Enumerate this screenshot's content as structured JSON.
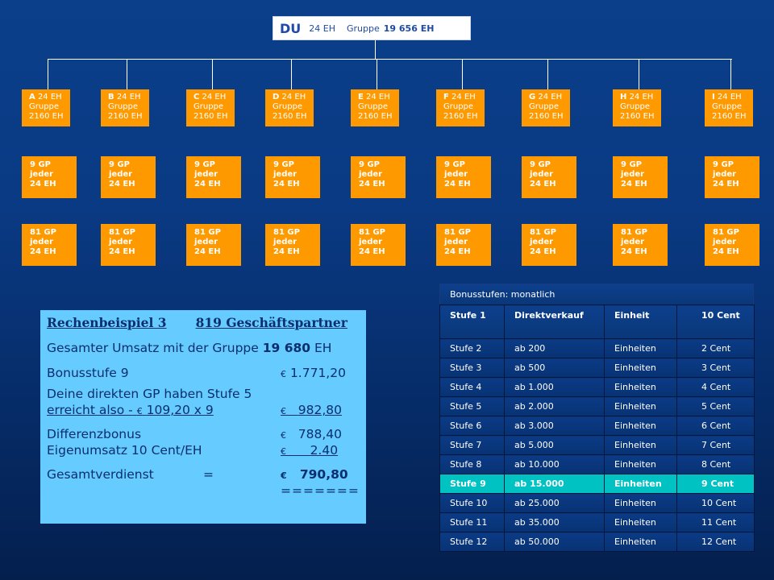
{
  "top": {
    "du": "DU",
    "eh": "24 EH",
    "gruppe_label": "Gruppe",
    "gruppe_value": "19 656 EH"
  },
  "branches": [
    {
      "letter": "A",
      "eh": "24 EH",
      "gruppe": "Gruppe",
      "gruppe_value": "2160 EH"
    },
    {
      "letter": "B",
      "eh": "24 EH",
      "gruppe": "Gruppe",
      "gruppe_value": "2160 EH"
    },
    {
      "letter": "C",
      "eh": "24 EH",
      "gruppe": "Gruppe",
      "gruppe_value": "2160 EH"
    },
    {
      "letter": "D",
      "eh": "24 EH",
      "gruppe": "Gruppe",
      "gruppe_value": "2160 EH"
    },
    {
      "letter": "E",
      "eh": "24 EH",
      "gruppe": "Gruppe",
      "gruppe_value": "2160 EH"
    },
    {
      "letter": "F",
      "eh": "24 EH",
      "gruppe": "Gruppe",
      "gruppe_value": "2160 EH"
    },
    {
      "letter": "G",
      "eh": "24 EH",
      "gruppe": "Gruppe",
      "gruppe_value": "2160 EH"
    },
    {
      "letter": "H",
      "eh": "24 EH",
      "gruppe": "Gruppe",
      "gruppe_value": "2160 EH"
    },
    {
      "letter": "I",
      "eh": "24 EH",
      "gruppe": "Gruppe",
      "gruppe_value": "2160 EH"
    }
  ],
  "level2": {
    "gp": "9 GP",
    "jeder": "jeder",
    "eh": "24 EH"
  },
  "level3": {
    "gp": "81 GP",
    "jeder": "jeder",
    "eh": "24 EH"
  },
  "calc": {
    "title_left": "Rechenbeispiel 3",
    "title_right": "819 Geschäftspartner",
    "umsatz_label": "Gesamter Umsatz mit der Gruppe",
    "umsatz_value": "19 680",
    "umsatz_unit": "EH",
    "bonus_label": "Bonusstufe 9",
    "bonus_value": "1.771,20",
    "direkt_line1": "Deine direkten GP haben Stufe 5",
    "direkt_line2": "erreicht also -",
    "direkt_formula": "109,20 x 9",
    "direkt_value": "982,80",
    "diff_label": "Differenzbonus",
    "diff_value": "788,40",
    "eigen_label": "Eigenumsatz 10 Cent/EH",
    "eigen_value": "2.40",
    "gesamt_label": "Gesamtverdienst",
    "gesamt_eq": "=",
    "gesamt_value": "790,80",
    "underline": "=======",
    "currency": "€"
  },
  "bonus_table": {
    "title": "Bonusstufen: monatlich",
    "header": [
      "Stufe 1",
      "Direktverkauf",
      "Einheit",
      "10  Cent"
    ],
    "rows": [
      [
        "Stufe 2",
        "ab 200",
        "Einheiten",
        "2  Cent"
      ],
      [
        "Stufe 3",
        "ab 500",
        "Einheiten",
        "3  Cent"
      ],
      [
        "Stufe 4",
        "ab 1.000",
        "Einheiten",
        "4  Cent"
      ],
      [
        "Stufe 5",
        "ab 2.000",
        "Einheiten",
        "5  Cent"
      ],
      [
        "Stufe 6",
        "ab 3.000",
        "Einheiten",
        "6  Cent"
      ],
      [
        "Stufe 7",
        "ab 5.000",
        "Einheiten",
        "7  Cent"
      ],
      [
        "Stufe 8",
        "ab 10.000",
        "Einheiten",
        "8  Cent"
      ],
      [
        "Stufe 9",
        "ab 15.000",
        "Einheiten",
        "9  Cent"
      ],
      [
        "Stufe 10",
        "ab 25.000",
        "Einheiten",
        "10  Cent"
      ],
      [
        "Stufe 11",
        "ab 35.000",
        "Einheiten",
        "11  Cent"
      ],
      [
        "Stufe 12",
        "ab 50.000",
        "Einheiten",
        "12  Cent"
      ]
    ],
    "highlight_color": "#00c2c2"
  },
  "colors": {
    "orange": "#ff9900",
    "panel": "#66ccff",
    "background": "#0a3a84"
  }
}
